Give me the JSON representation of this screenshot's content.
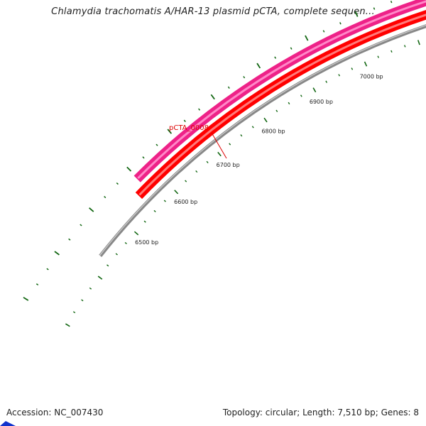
{
  "title": "Chlamydia trachomatis A/HAR-13 plasmid pCTA, complete sequen...",
  "footer": {
    "accession": "Accession: NC_007430",
    "summary": "Topology: circular; Length: 7,510 bp; Genes: 8"
  },
  "plasmid": {
    "length_bp": 7510,
    "topology": "circular",
    "genes_count": 8
  },
  "tick_labels": [
    "6500 bp",
    "6600 bp",
    "6700 bp",
    "6800 bp",
    "6900 bp",
    "7000 bp"
  ],
  "gene_label": "pCTA_0008",
  "colors": {
    "backbone": "#888888",
    "outer_feature": "#ee2288",
    "inner_feature": "#ff0000",
    "ticks": "#116611",
    "gene_label": "#dd0000",
    "feature_left_edge": "#1133cc"
  }
}
